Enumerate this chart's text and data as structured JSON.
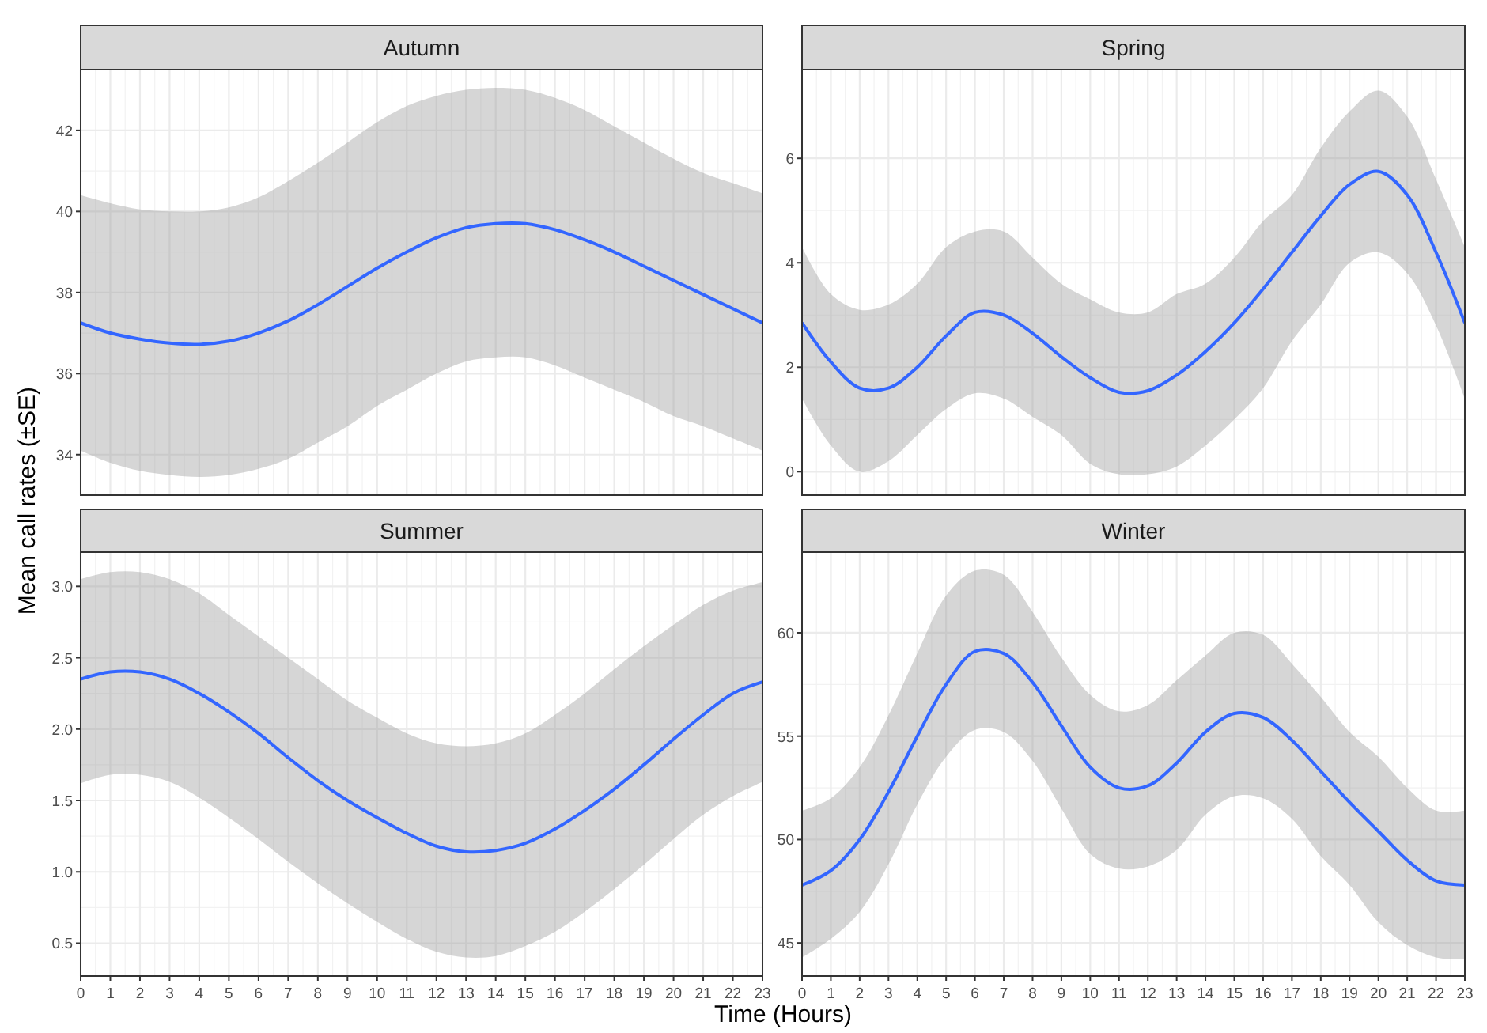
{
  "chart_data": [
    {
      "type": "line",
      "title": "Autumn",
      "ylabel": "Mean call rates (±SE)",
      "x": [
        0,
        1,
        2,
        3,
        4,
        5,
        6,
        7,
        8,
        9,
        10,
        11,
        12,
        13,
        14,
        15,
        16,
        17,
        18,
        19,
        20,
        21,
        22,
        23
      ],
      "xlim": [
        0,
        23
      ],
      "xticks": [
        0,
        1,
        2,
        3,
        4,
        5,
        6,
        7,
        8,
        9,
        10,
        11,
        12,
        13,
        14,
        15,
        16,
        17,
        18,
        19,
        20,
        21,
        22,
        23
      ],
      "ylim": [
        33,
        43.5
      ],
      "yticks": [
        34,
        36,
        38,
        40,
        42
      ],
      "grid": true,
      "tick_labels": "y",
      "series": [
        {
          "color": "#3366ff",
          "values": [
            37.25,
            37.0,
            36.85,
            36.75,
            36.72,
            36.8,
            37.0,
            37.3,
            37.7,
            38.15,
            38.6,
            39.0,
            39.35,
            39.6,
            39.7,
            39.7,
            39.55,
            39.3,
            39.0,
            38.65,
            38.3,
            37.95,
            37.6,
            37.25
          ],
          "upper": [
            40.4,
            40.2,
            40.05,
            40.0,
            40.0,
            40.1,
            40.35,
            40.75,
            41.2,
            41.7,
            42.2,
            42.6,
            42.85,
            43.0,
            43.05,
            43.0,
            42.8,
            42.5,
            42.1,
            41.7,
            41.3,
            40.95,
            40.7,
            40.45
          ],
          "lower": [
            34.1,
            33.8,
            33.6,
            33.5,
            33.45,
            33.5,
            33.65,
            33.9,
            34.3,
            34.7,
            35.2,
            35.6,
            36.0,
            36.3,
            36.4,
            36.4,
            36.2,
            35.9,
            35.6,
            35.3,
            34.95,
            34.7,
            34.4,
            34.1
          ]
        }
      ]
    },
    {
      "type": "line",
      "title": "Spring",
      "x": [
        0,
        1,
        2,
        3,
        4,
        5,
        6,
        7,
        8,
        9,
        10,
        11,
        12,
        13,
        14,
        15,
        16,
        17,
        18,
        19,
        20,
        21,
        22,
        23
      ],
      "xlim": [
        0,
        23
      ],
      "xticks": [
        0,
        1,
        2,
        3,
        4,
        5,
        6,
        7,
        8,
        9,
        10,
        11,
        12,
        13,
        14,
        15,
        16,
        17,
        18,
        19,
        20,
        21,
        22,
        23
      ],
      "ylim": [
        -0.45,
        7.7
      ],
      "yticks": [
        0,
        2,
        4,
        6
      ],
      "grid": true,
      "tick_labels": "y",
      "series": [
        {
          "color": "#3366ff",
          "values": [
            2.85,
            2.1,
            1.6,
            1.6,
            2.0,
            2.6,
            3.05,
            3.0,
            2.65,
            2.2,
            1.8,
            1.52,
            1.55,
            1.85,
            2.3,
            2.85,
            3.5,
            4.2,
            4.9,
            5.5,
            5.75,
            5.3,
            4.2,
            2.85
          ],
          "upper": [
            4.3,
            3.4,
            3.1,
            3.2,
            3.6,
            4.3,
            4.6,
            4.6,
            4.1,
            3.6,
            3.3,
            3.05,
            3.05,
            3.4,
            3.6,
            4.1,
            4.8,
            5.3,
            6.2,
            6.9,
            7.3,
            6.8,
            5.6,
            4.3
          ],
          "lower": [
            1.4,
            0.5,
            0.0,
            0.2,
            0.7,
            1.2,
            1.5,
            1.4,
            1.05,
            0.7,
            0.15,
            -0.05,
            -0.05,
            0.1,
            0.5,
            1.0,
            1.6,
            2.5,
            3.2,
            4.0,
            4.2,
            3.8,
            2.8,
            1.4
          ]
        }
      ]
    },
    {
      "type": "line",
      "title": "Summer",
      "xlabel": "Time (Hours)",
      "x": [
        0,
        1,
        2,
        3,
        4,
        5,
        6,
        7,
        8,
        9,
        10,
        11,
        12,
        13,
        14,
        15,
        16,
        17,
        18,
        19,
        20,
        21,
        22,
        23
      ],
      "xlim": [
        0,
        23
      ],
      "xticks": [
        0,
        1,
        2,
        3,
        4,
        5,
        6,
        7,
        8,
        9,
        10,
        11,
        12,
        13,
        14,
        15,
        16,
        17,
        18,
        19,
        20,
        21,
        22,
        23
      ],
      "ylim": [
        0.27,
        3.24
      ],
      "yticks": [
        0.5,
        {
          "value": 1,
          "label": "1.0"
        },
        1.5,
        {
          "value": 2,
          "label": "2.0"
        },
        2.5,
        {
          "value": 3,
          "label": "3.0"
        }
      ],
      "grid": true,
      "series": [
        {
          "color": "#3366ff",
          "values": [
            2.35,
            2.4,
            2.4,
            2.35,
            2.25,
            2.12,
            1.97,
            1.8,
            1.64,
            1.5,
            1.38,
            1.27,
            1.18,
            1.14,
            1.15,
            1.2,
            1.3,
            1.43,
            1.58,
            1.75,
            1.93,
            2.1,
            2.25,
            2.33
          ],
          "upper": [
            3.05,
            3.1,
            3.1,
            3.05,
            2.95,
            2.8,
            2.65,
            2.5,
            2.35,
            2.2,
            2.08,
            1.97,
            1.9,
            1.88,
            1.9,
            1.97,
            2.1,
            2.25,
            2.42,
            2.58,
            2.73,
            2.87,
            2.97,
            3.03
          ],
          "lower": [
            1.62,
            1.68,
            1.68,
            1.63,
            1.52,
            1.38,
            1.23,
            1.07,
            0.92,
            0.78,
            0.65,
            0.53,
            0.44,
            0.4,
            0.41,
            0.48,
            0.58,
            0.72,
            0.88,
            1.05,
            1.23,
            1.4,
            1.53,
            1.63
          ]
        }
      ]
    },
    {
      "type": "line",
      "title": "Winter",
      "x": [
        0,
        1,
        2,
        3,
        4,
        5,
        6,
        7,
        8,
        9,
        10,
        11,
        12,
        13,
        14,
        15,
        16,
        17,
        18,
        19,
        20,
        21,
        22,
        23
      ],
      "xlim": [
        0,
        23
      ],
      "xticks": [
        0,
        1,
        2,
        3,
        4,
        5,
        6,
        7,
        8,
        9,
        10,
        11,
        12,
        13,
        14,
        15,
        16,
        17,
        18,
        19,
        20,
        21,
        22,
        23
      ],
      "ylim": [
        43.4,
        63.9
      ],
      "yticks": [
        45,
        50,
        55,
        60
      ],
      "grid": true,
      "series": [
        {
          "color": "#3366ff",
          "values": [
            47.8,
            48.5,
            50.0,
            52.3,
            55.0,
            57.5,
            59.1,
            59.0,
            57.6,
            55.5,
            53.5,
            52.5,
            52.6,
            53.7,
            55.2,
            56.1,
            55.9,
            54.8,
            53.3,
            51.8,
            50.4,
            49.0,
            48.0,
            47.8
          ],
          "upper": [
            51.4,
            52.0,
            53.5,
            56.0,
            59.0,
            61.8,
            63.0,
            62.8,
            61.0,
            58.8,
            57.0,
            56.2,
            56.5,
            57.7,
            58.9,
            60.0,
            59.9,
            58.5,
            56.9,
            55.2,
            54.0,
            52.5,
            51.4,
            51.4
          ],
          "lower": [
            44.3,
            45.2,
            46.5,
            48.8,
            51.7,
            54.0,
            55.3,
            55.2,
            53.8,
            51.5,
            49.3,
            48.6,
            48.7,
            49.5,
            51.2,
            52.1,
            52.0,
            51.0,
            49.2,
            47.8,
            46.0,
            44.9,
            44.3,
            44.2
          ]
        }
      ]
    }
  ]
}
